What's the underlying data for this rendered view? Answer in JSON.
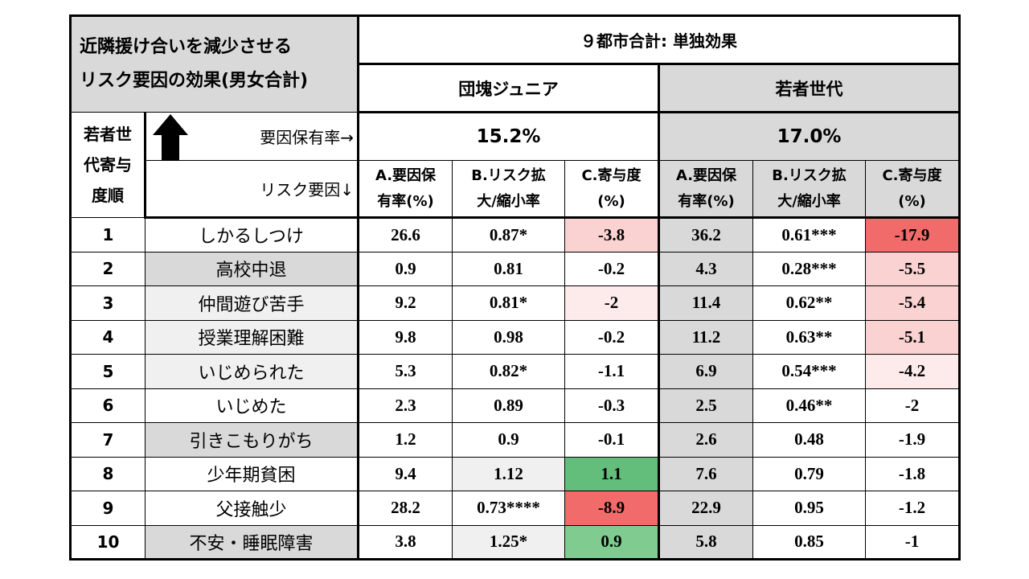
{
  "header": {
    "title_line1": "近隣援け合いを減少させる",
    "title_line2": "リスク要因の効果(男女合計)",
    "top": "９都市合計: 単独効果",
    "group_a": "団塊ジュニア",
    "group_b": "若者世代",
    "rank_label_1": "若者世",
    "rank_label_2": "代寄与",
    "rank_label_3": "度順",
    "rate_label": "要因保有率→",
    "risk_label": "リスク要因↓",
    "rate_a": "15.2%",
    "rate_b": "17.0%",
    "col_a_1": "A.要因保",
    "col_a_2": "有率(%)",
    "col_b_1": "B.リスク拡",
    "col_b_2": "大/縮小率",
    "col_c_1": "C.寄与度",
    "col_c_2": "(%)"
  },
  "colors": {
    "red_strong": "#f26b6b",
    "red_mid": "#f7a9a9",
    "red_light": "#fbd2d2",
    "red_pale": "#fdeaea",
    "green_strong": "#63be7b",
    "green_mid": "#7fcb90",
    "gray": "#d9d9d9"
  },
  "rows": [
    {
      "rank": "1",
      "factor": "しかるしつけ",
      "a1": "26.6",
      "b1": "0.87*",
      "c1": "-3.8",
      "a2": "36.2",
      "b2": "0.61***",
      "c2": "-17.9"
    },
    {
      "rank": "2",
      "factor": "高校中退",
      "a1": "0.9",
      "b1": "0.81",
      "c1": "-0.2",
      "a2": "4.3",
      "b2": "0.28***",
      "c2": "-5.5"
    },
    {
      "rank": "3",
      "factor": "仲間遊び苦手",
      "a1": "9.2",
      "b1": "0.81*",
      "c1": "-2",
      "a2": "11.4",
      "b2": "0.62**",
      "c2": "-5.4"
    },
    {
      "rank": "4",
      "factor": "授業理解困難",
      "a1": "9.8",
      "b1": "0.98",
      "c1": "-0.2",
      "a2": "11.2",
      "b2": "0.63**",
      "c2": "-5.1"
    },
    {
      "rank": "5",
      "factor": "いじめられた",
      "a1": "5.3",
      "b1": "0.82*",
      "c1": "-1.1",
      "a2": "6.9",
      "b2": "0.54***",
      "c2": "-4.2"
    },
    {
      "rank": "6",
      "factor": "いじめた",
      "a1": "2.3",
      "b1": "0.89",
      "c1": "-0.3",
      "a2": "2.5",
      "b2": "0.46**",
      "c2": "-2"
    },
    {
      "rank": "7",
      "factor": "引きこもりがち",
      "a1": "1.2",
      "b1": "0.9",
      "c1": "-0.1",
      "a2": "2.6",
      "b2": "0.48",
      "c2": "-1.9"
    },
    {
      "rank": "8",
      "factor": "少年期貧困",
      "a1": "9.4",
      "b1": "1.12",
      "c1": "1.1",
      "a2": "7.6",
      "b2": "0.79",
      "c2": "-1.8"
    },
    {
      "rank": "9",
      "factor": "父接触少",
      "a1": "28.2",
      "b1": "0.73****",
      "c1": "-8.9",
      "a2": "22.9",
      "b2": "0.95",
      "c2": "-1.2"
    },
    {
      "rank": "10",
      "factor": "不安・睡眠障害",
      "a1": "3.8",
      "b1": "1.25*",
      "c1": "0.9",
      "a2": "5.8",
      "b2": "0.85",
      "c2": "-1"
    }
  ]
}
